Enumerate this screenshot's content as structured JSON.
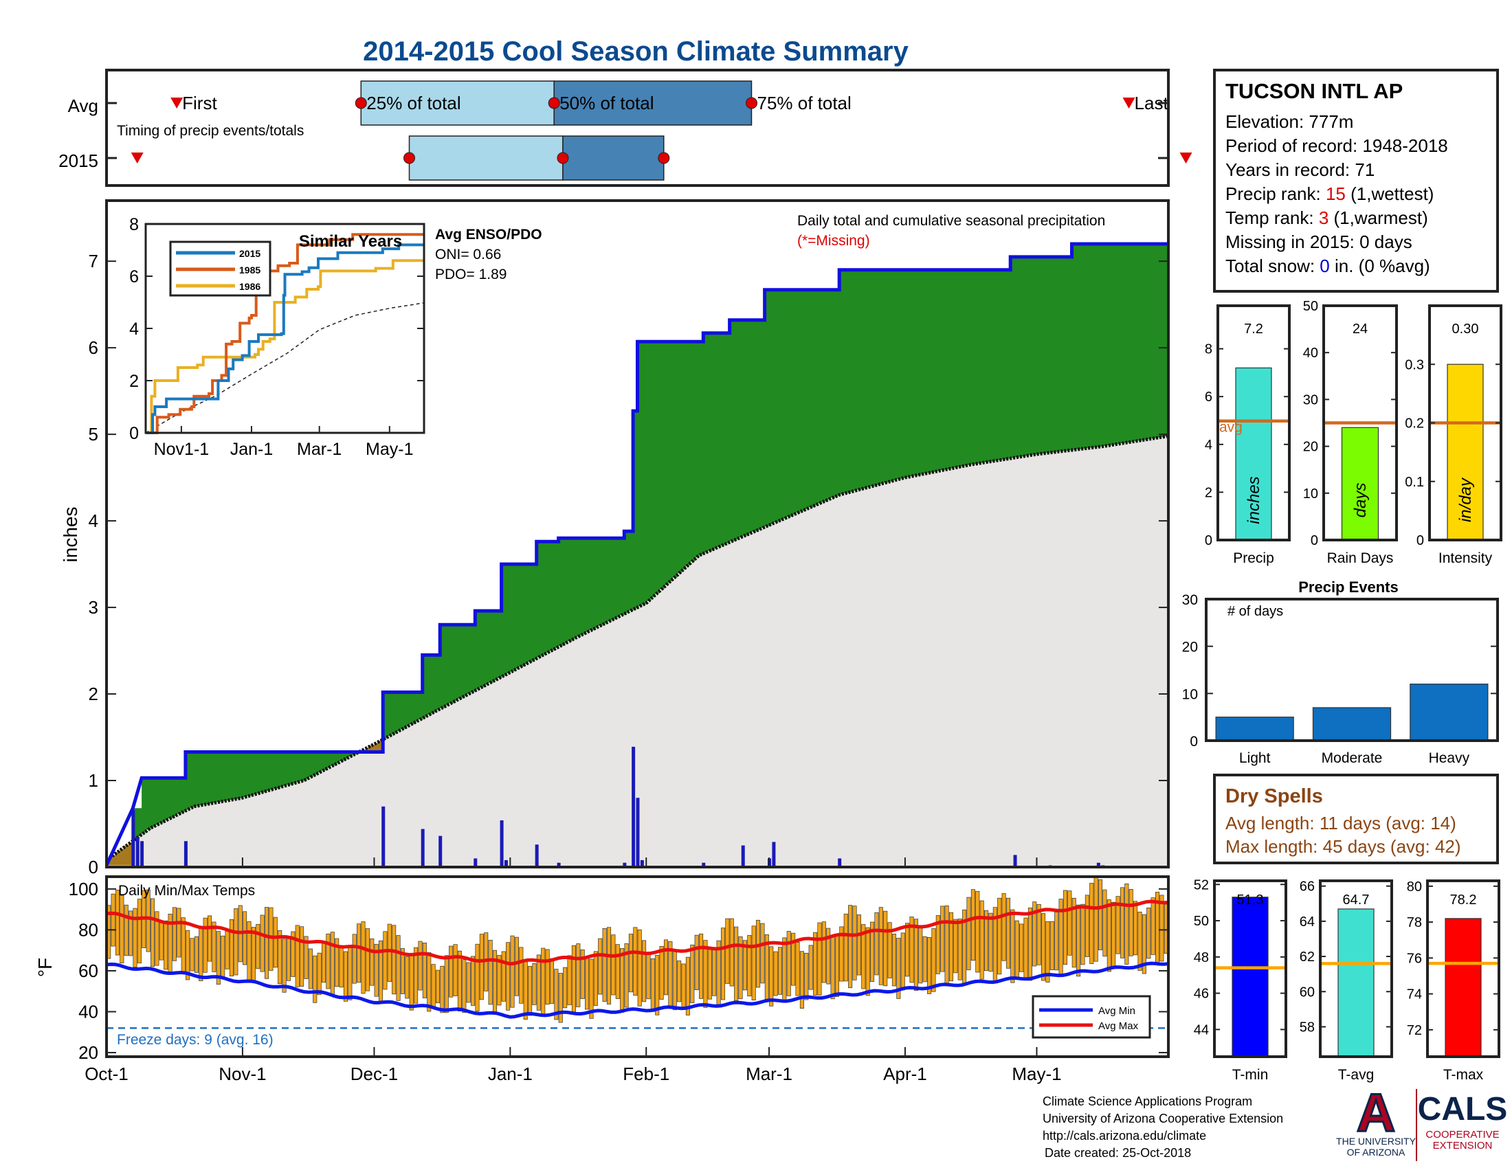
{
  "title": "2014-2015 Cool Season Climate Summary",
  "colors": {
    "title": "#0b4a8f",
    "frame": "#222222",
    "cumulative_line": "#1010e0",
    "surplus_fill": "#218a21",
    "avg_fill": "#e8e6e4",
    "deficit_fill": "#a7791e",
    "daily_bar": "#1a1ab8",
    "timing_light": "#a9d8ea",
    "timing_dark": "#4682b4",
    "timing_marker": "#e00000",
    "temp_bar": "#f2a51a",
    "avg_min": "#0c18e8",
    "avg_max": "#e81010",
    "freeze_line": "#1f6fc0",
    "dry_spell_text": "#8b4513",
    "red_value": "#e00000",
    "blue_value": "#0000cc",
    "bar_precip": "#40e0d0",
    "bar_raindays": "#7cfc00",
    "bar_intensity": "#ffd700",
    "avg_line": "#d2691e",
    "event_bar": "#0f6fc0",
    "tmin_bar": "#0000ff",
    "tavg_bar": "#40e0d0",
    "tmax_bar": "#ff0000",
    "temp_avg_line": "#ffa500",
    "ua_red": "#ab0520",
    "ua_blue": "#0c234b"
  },
  "timing": {
    "rows": [
      "Avg",
      "2015"
    ],
    "subtitle": "Timing of precip events/totals",
    "labels": {
      "first": "First",
      "p25": "25% of total",
      "p50": "50% of total",
      "p75": "75% of total",
      "last": "Last"
    },
    "avg_days": {
      "first": 16,
      "p25": 58,
      "p50": 102,
      "p75": 147,
      "last": 233
    },
    "y2015_days": {
      "first": 7,
      "p25": 69,
      "p50": 104,
      "p75": 127,
      "last": 246
    }
  },
  "chart_data": [
    {
      "type": "area",
      "name": "main",
      "note": "Daily total and cumulative seasonal precipitation",
      "missing_note": "(*=Missing)",
      "ylabel": "inches",
      "ylim": [
        0,
        7.7
      ],
      "yticks": [
        0,
        1,
        2,
        3,
        4,
        5,
        6,
        7
      ],
      "x_unit": "day of season (Oct-1 = 0)",
      "x_max": 242,
      "month_ticks": [
        {
          "label": "Oct-1",
          "day": 0
        },
        {
          "label": "Nov-1",
          "day": 31
        },
        {
          "label": "Dec-1",
          "day": 61
        },
        {
          "label": "Jan-1",
          "day": 92
        },
        {
          "label": "Feb-1",
          "day": 123
        },
        {
          "label": "Mar-1",
          "day": 151
        },
        {
          "label": "Apr-1",
          "day": 182
        },
        {
          "label": "May-1",
          "day": 212
        }
      ],
      "cumulative_2015": [
        [
          0,
          0.02
        ],
        [
          6,
          0.68
        ],
        [
          8,
          1.03
        ],
        [
          18,
          1.03
        ],
        [
          18,
          1.33
        ],
        [
          63,
          1.33
        ],
        [
          63,
          2.02
        ],
        [
          72,
          2.02
        ],
        [
          72,
          2.45
        ],
        [
          76,
          2.45
        ],
        [
          76,
          2.8
        ],
        [
          84,
          2.8
        ],
        [
          84,
          2.96
        ],
        [
          90,
          2.96
        ],
        [
          90,
          3.5
        ],
        [
          98,
          3.5
        ],
        [
          98,
          3.76
        ],
        [
          103,
          3.76
        ],
        [
          103,
          3.8
        ],
        [
          118,
          3.8
        ],
        [
          118,
          3.88
        ],
        [
          120,
          3.88
        ],
        [
          120,
          5.27
        ],
        [
          121,
          5.27
        ],
        [
          121,
          6.07
        ],
        [
          136,
          6.07
        ],
        [
          136,
          6.17
        ],
        [
          142,
          6.17
        ],
        [
          142,
          6.32
        ],
        [
          150,
          6.32
        ],
        [
          150,
          6.67
        ],
        [
          167,
          6.67
        ],
        [
          167,
          6.9
        ],
        [
          206,
          6.9
        ],
        [
          206,
          7.05
        ],
        [
          220,
          7.05
        ],
        [
          220,
          7.2
        ],
        [
          242,
          7.2
        ]
      ],
      "average_cumulative": [
        [
          0,
          0.08
        ],
        [
          10,
          0.45
        ],
        [
          20,
          0.7
        ],
        [
          31,
          0.8
        ],
        [
          45,
          1.0
        ],
        [
          61,
          1.42
        ],
        [
          75,
          1.8
        ],
        [
          92,
          2.25
        ],
        [
          107,
          2.65
        ],
        [
          123,
          3.05
        ],
        [
          135,
          3.6
        ],
        [
          151,
          3.95
        ],
        [
          167,
          4.3
        ],
        [
          182,
          4.5
        ],
        [
          197,
          4.65
        ],
        [
          212,
          4.77
        ],
        [
          227,
          4.86
        ],
        [
          242,
          4.98
        ]
      ],
      "daily_precip": [
        [
          6,
          0.66
        ],
        [
          7,
          0.35
        ],
        [
          8,
          0.3
        ],
        [
          18,
          0.3
        ],
        [
          63,
          0.7
        ],
        [
          72,
          0.44
        ],
        [
          76,
          0.36
        ],
        [
          84,
          0.1
        ],
        [
          90,
          0.54
        ],
        [
          91,
          0.08
        ],
        [
          98,
          0.26
        ],
        [
          103,
          0.05
        ],
        [
          118,
          0.05
        ],
        [
          120,
          1.39
        ],
        [
          121,
          0.8
        ],
        [
          122,
          0.08
        ],
        [
          136,
          0.05
        ],
        [
          145,
          0.25
        ],
        [
          151,
          0.1
        ],
        [
          152,
          0.29
        ],
        [
          167,
          0.1
        ],
        [
          207,
          0.14
        ],
        [
          215,
          0.02
        ],
        [
          227,
          0.02
        ],
        [
          226,
          0.05
        ]
      ]
    },
    {
      "type": "line",
      "name": "similar-years-inset",
      "title": "Similar Years",
      "ylim": [
        0,
        8
      ],
      "yticks": [
        0,
        2,
        4,
        6,
        8
      ],
      "xticks": [
        {
          "label": "Nov1-1",
          "day": 31
        },
        {
          "label": "Jan-1",
          "day": 92
        },
        {
          "label": "Mar-1",
          "day": 151
        },
        {
          "label": "May-1",
          "day": 212
        }
      ],
      "series": [
        {
          "name": "2015",
          "points": [
            [
              0,
              0
            ],
            [
              6,
              0.7
            ],
            [
              8,
              1.0
            ],
            [
              18,
              1.0
            ],
            [
              18,
              1.3
            ],
            [
              63,
              1.3
            ],
            [
              63,
              2.0
            ],
            [
              72,
              2.0
            ],
            [
              72,
              2.45
            ],
            [
              76,
              2.45
            ],
            [
              76,
              2.8
            ],
            [
              84,
              2.8
            ],
            [
              84,
              2.96
            ],
            [
              90,
              2.96
            ],
            [
              90,
              3.5
            ],
            [
              98,
              3.5
            ],
            [
              98,
              3.76
            ],
            [
              118,
              3.8
            ],
            [
              120,
              5.27
            ],
            [
              121,
              6.07
            ],
            [
              136,
              6.17
            ],
            [
              142,
              6.32
            ],
            [
              150,
              6.67
            ],
            [
              167,
              6.9
            ],
            [
              206,
              7.05
            ],
            [
              220,
              7.2
            ],
            [
              242,
              7.2
            ]
          ]
        },
        {
          "name": "1985",
          "points": [
            [
              0,
              0
            ],
            [
              10,
              0.6
            ],
            [
              20,
              0.7
            ],
            [
              30,
              0.9
            ],
            [
              40,
              1.0
            ],
            [
              42,
              1.4
            ],
            [
              55,
              1.5
            ],
            [
              58,
              2.0
            ],
            [
              66,
              2.2
            ],
            [
              70,
              3.4
            ],
            [
              75,
              3.5
            ],
            [
              80,
              3.5
            ],
            [
              82,
              4.2
            ],
            [
              90,
              4.4
            ],
            [
              92,
              4.5
            ],
            [
              96,
              5.5
            ],
            [
              102,
              5.6
            ],
            [
              105,
              6.2
            ],
            [
              115,
              6.4
            ],
            [
              125,
              6.5
            ],
            [
              132,
              7.2
            ],
            [
              160,
              7.4
            ],
            [
              180,
              7.6
            ],
            [
              242,
              7.6
            ]
          ]
        },
        {
          "name": "1986",
          "points": [
            [
              0,
              0
            ],
            [
              5,
              1.4
            ],
            [
              8,
              2.0
            ],
            [
              25,
              2.0
            ],
            [
              28,
              2.5
            ],
            [
              45,
              2.6
            ],
            [
              50,
              2.9
            ],
            [
              90,
              2.9
            ],
            [
              95,
              3.0
            ],
            [
              98,
              3.2
            ],
            [
              102,
              3.5
            ],
            [
              108,
              3.6
            ],
            [
              112,
              5.0
            ],
            [
              130,
              5.2
            ],
            [
              140,
              5.5
            ],
            [
              150,
              5.6
            ],
            [
              152,
              6.2
            ],
            [
              200,
              6.3
            ],
            [
              215,
              6.6
            ],
            [
              242,
              6.6
            ]
          ]
        }
      ],
      "average_points": [
        [
          0,
          0
        ],
        [
          31,
          0.8
        ],
        [
          61,
          1.42
        ],
        [
          92,
          2.25
        ],
        [
          123,
          3.05
        ],
        [
          151,
          3.95
        ],
        [
          182,
          4.5
        ],
        [
          212,
          4.77
        ],
        [
          242,
          4.98
        ]
      ]
    },
    {
      "type": "bar",
      "name": "daily-min-max-temps",
      "title": "Daily Min/Max Temps",
      "ylabel": "°F",
      "ylim": [
        18,
        106
      ],
      "yticks": [
        20,
        40,
        60,
        80,
        100
      ],
      "freeze_line": 32,
      "freeze_text": "Freeze days: 9 (avg. 16)",
      "legend": [
        "Avg Min",
        "Avg Max"
      ],
      "avg_min_points": [
        [
          0,
          63
        ],
        [
          31,
          55
        ],
        [
          61,
          45
        ],
        [
          92,
          38
        ],
        [
          123,
          41
        ],
        [
          151,
          45
        ],
        [
          182,
          51
        ],
        [
          212,
          57
        ],
        [
          242,
          64
        ]
      ],
      "avg_max_points": [
        [
          0,
          88
        ],
        [
          31,
          79
        ],
        [
          61,
          70
        ],
        [
          92,
          64
        ],
        [
          123,
          69
        ],
        [
          151,
          73
        ],
        [
          182,
          81
        ],
        [
          212,
          89
        ],
        [
          242,
          94
        ]
      ]
    },
    {
      "type": "bar",
      "name": "precip-summary",
      "panels": [
        {
          "category": "Precip",
          "value": 7.2,
          "label": "7.2",
          "unit_label": "inches",
          "avg": 4.98,
          "avg_label": "avg",
          "ylim": [
            0,
            9.8
          ],
          "yticks": [
            0,
            2,
            4,
            6,
            8
          ]
        },
        {
          "category": "Rain Days",
          "value": 24,
          "label": "24",
          "unit_label": "days",
          "avg": 25,
          "ylim": [
            0,
            50
          ],
          "yticks": [
            0,
            10,
            20,
            30,
            40,
            50
          ]
        },
        {
          "category": "Intensity",
          "value": 0.3,
          "label": "0.30",
          "unit_label": "in/day",
          "avg": 0.2,
          "ylim": [
            0,
            0.4
          ],
          "yticks": [
            0,
            0.1,
            0.2,
            0.3
          ]
        }
      ]
    },
    {
      "type": "bar",
      "name": "precip-events",
      "title": "Precip Events",
      "ylabel_note": "# of days",
      "categories": [
        "Light",
        "Moderate",
        "Heavy"
      ],
      "values": [
        5,
        7,
        12
      ],
      "ylim": [
        0,
        30
      ],
      "yticks": [
        0,
        10,
        20,
        30
      ]
    },
    {
      "type": "bar",
      "name": "temperature-summary",
      "panels": [
        {
          "category": "T-min",
          "value": 51.3,
          "label": "51.3",
          "avg": 47.4,
          "ylim": [
            42.5,
            52.2
          ],
          "yticks": [
            44,
            46,
            48,
            50,
            52
          ]
        },
        {
          "category": "T-avg",
          "value": 64.7,
          "label": "64.7",
          "avg": 61.6,
          "ylim": [
            56.3,
            66.3
          ],
          "yticks": [
            58,
            60,
            62,
            64,
            66
          ]
        },
        {
          "category": "T-max",
          "value": 78.2,
          "label": "78.2",
          "avg": 75.7,
          "ylim": [
            70.5,
            80.3
          ],
          "yticks": [
            72,
            74,
            76,
            78,
            80
          ]
        }
      ]
    }
  ],
  "station": {
    "name": "TUCSON INTL AP",
    "elevation": "Elevation: 777m",
    "period": "Period of record: 1948-2018",
    "years": "Years in record: 71",
    "precip_rank_prefix": "Precip rank: ",
    "precip_rank_value": "15",
    "precip_rank_suffix": " (1,wettest)",
    "temp_rank_prefix": "Temp rank: ",
    "temp_rank_value": "3",
    "temp_rank_suffix": " (1,warmest)",
    "missing": "Missing in 2015: 0 days",
    "snow_prefix": "Total snow: ",
    "snow_value": "0",
    "snow_suffix": " in. (0 %avg)"
  },
  "enso": {
    "title": "Avg ENSO/PDO",
    "oni": "ONI= 0.66",
    "pdo": "PDO= 1.89"
  },
  "dry_spells": {
    "title": "Dry Spells",
    "avg_length": "Avg length: 11 days (avg: 14)",
    "max_length": "Max length: 45 days (avg: 42)"
  },
  "footer": {
    "line1": "Climate Science Applications Program",
    "line2": "University of Arizona Cooperative Extension",
    "line3": "http://cals.arizona.edu/climate",
    "line4": "Date created: 25-Oct-2018"
  },
  "logos": {
    "ua_letter": "A",
    "ua_line1": "THE UNIVERSITY",
    "ua_line2": "OF ARIZONA",
    "cals": "CALS",
    "cals_line1": "COOPERATIVE",
    "cals_line2": "EXTENSION"
  }
}
